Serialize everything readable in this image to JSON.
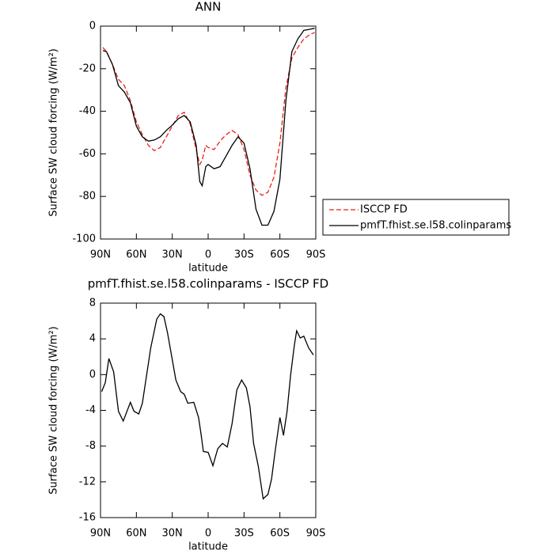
{
  "chart_data": [
    {
      "type": "line",
      "title": "ANN",
      "x_label": "latitude",
      "y_label": "Surface SW cloud forcing (W/m²)",
      "x": [
        88,
        85,
        80,
        75,
        70,
        65,
        60,
        55,
        50,
        45,
        40,
        35,
        30,
        25,
        20,
        15,
        10,
        7,
        5,
        2,
        0,
        -5,
        -10,
        -15,
        -20,
        -25,
        -30,
        -35,
        -40,
        -45,
        -50,
        -55,
        -60,
        -65,
        -70,
        -75,
        -80,
        -85,
        -89
      ],
      "series": [
        {
          "name": "ISCCP FD",
          "color": "#e8221a",
          "dash": true,
          "values": [
            -10,
            -12,
            -18,
            -25,
            -28,
            -35,
            -45,
            -51,
            -56,
            -58.5,
            -57,
            -52,
            -47,
            -42,
            -40.5,
            -46,
            -58,
            -65,
            -63,
            -56,
            -57,
            -58,
            -54,
            -51,
            -49,
            -51,
            -58,
            -70,
            -77,
            -79.5,
            -78,
            -71,
            -55,
            -29,
            -15,
            -10,
            -6,
            -4,
            -3
          ]
        },
        {
          "name": "pmfT.fhist.se.l58.colinparams",
          "color": "#000000",
          "dash": false,
          "values": [
            -11.5,
            -12,
            -18,
            -28,
            -31,
            -36,
            -47,
            -52,
            -54,
            -53.5,
            -52,
            -49,
            -46.5,
            -43.5,
            -42,
            -45,
            -56,
            -73,
            -75,
            -66,
            -65,
            -67,
            -66,
            -61,
            -56,
            -52,
            -55,
            -67,
            -86,
            -93.5,
            -93.5,
            -87,
            -72,
            -35,
            -12,
            -6,
            -2,
            -1.5,
            -1
          ]
        }
      ],
      "xlim": [
        90,
        -90
      ],
      "xticks": [
        {
          "value": 90,
          "label": "90N"
        },
        {
          "value": 60,
          "label": "60N"
        },
        {
          "value": 30,
          "label": "30N"
        },
        0,
        {
          "value": -30,
          "label": "30S"
        },
        {
          "value": -60,
          "label": "60S"
        },
        {
          "value": -90,
          "label": "90S"
        }
      ],
      "ylim": [
        -100,
        0
      ],
      "yticks": [
        -100,
        -80,
        -60,
        -40,
        -20,
        0
      ],
      "legend": "right"
    },
    {
      "type": "line",
      "title": "pmfT.fhist.se.l58.colinparams - ISCCP FD",
      "x_label": "latitude",
      "y_label": "Surface SW cloud forcing (W/m²)",
      "x": [
        89,
        86,
        83,
        79,
        75,
        71,
        65,
        62,
        58,
        55,
        48,
        43,
        40,
        37,
        34,
        27,
        23,
        20,
        17,
        12,
        8,
        6,
        4,
        0,
        -4,
        -8,
        -12,
        -16,
        -20,
        -24,
        -28,
        -32,
        -35,
        -38,
        -42,
        -46,
        -50,
        -53,
        -56,
        -60,
        -63,
        -66,
        -69,
        -72,
        -74,
        -77,
        -80,
        -84,
        -88
      ],
      "series": [
        {
          "name": null,
          "color": "#000000",
          "dash": false,
          "values": [
            -1.9,
            -0.9,
            1.8,
            0.3,
            -4.1,
            -5.2,
            -3.1,
            -4.1,
            -4.4,
            -3.2,
            3,
            6.2,
            6.8,
            6.5,
            4.7,
            -0.6,
            -1.9,
            -2.2,
            -3.2,
            -3.1,
            -4.8,
            -6.6,
            -8.6,
            -8.7,
            -10.2,
            -8.3,
            -7.7,
            -8.1,
            -5.5,
            -1.7,
            -0.6,
            -1.5,
            -3.6,
            -7.7,
            -10.3,
            -13.9,
            -13.4,
            -11.7,
            -8.6,
            -4.8,
            -6.8,
            -4.1,
            0,
            3.2,
            4.9,
            4.1,
            4.3,
            3,
            2.2
          ]
        }
      ],
      "xlim": [
        90,
        -90
      ],
      "xticks": [
        {
          "value": 90,
          "label": "90N"
        },
        {
          "value": 60,
          "label": "60N"
        },
        {
          "value": 30,
          "label": "30N"
        },
        0,
        {
          "value": -30,
          "label": "30S"
        },
        {
          "value": -60,
          "label": "60S"
        },
        {
          "value": -90,
          "label": "90S"
        }
      ],
      "ylim": [
        -16,
        8
      ],
      "yticks": [
        -16,
        -12,
        -8,
        -4,
        0,
        4,
        8
      ]
    }
  ]
}
